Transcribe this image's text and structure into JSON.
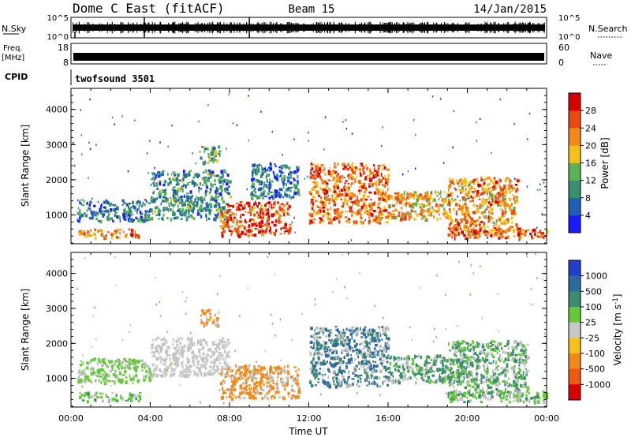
{
  "header": {
    "radar": "Dome C East (fitACF)",
    "beam": "Beam 15",
    "date": "14/Jan/2015"
  },
  "top_panels": {
    "nsky": {
      "label": "N.Sky",
      "tick_top": "10^5",
      "tick_bottom": "10^0",
      "right_label": "N.Search",
      "right_tick_top": "10^5",
      "right_tick_bottom": "10^0"
    },
    "freq": {
      "label_line1": "Freq.",
      "label_line2": "[MHz]",
      "tick_top": "18",
      "tick_bottom": "8",
      "right_label": "Nave",
      "right_tick_top": "60",
      "right_tick_bottom": "0"
    },
    "cpid": {
      "label": "CPID",
      "value": "twofsound 3501"
    }
  },
  "colors": {
    "power": [
      "#1a1aff",
      "#1f5fb5",
      "#3a8f70",
      "#5bb356",
      "#f2c21a",
      "#f08a1a",
      "#e84a12",
      "#d60000"
    ],
    "velocity": [
      "#2040c8",
      "#2f6a9c",
      "#3c8c6e",
      "#66c83a",
      "#c8c8c8",
      "#f2c21a",
      "#f08a1a",
      "#ee5a12",
      "#d60000"
    ],
    "grey": "#bebebe"
  },
  "chart_data": [
    {
      "type": "heatmap",
      "panel": "power",
      "xlabel": "",
      "ylabel": "Slant Range [km]",
      "x": [
        "00:00",
        "04:00",
        "08:00",
        "12:00",
        "16:00",
        "20:00",
        "00:00"
      ],
      "xlim_hours": [
        0,
        24
      ],
      "ylim": [
        180,
        4600
      ],
      "yticks": [
        "1000",
        "2000",
        "3000",
        "4000"
      ],
      "colorbar": {
        "label": "Power [dB]",
        "ticks": [
          "4",
          "8",
          "12",
          "16",
          "20",
          "24",
          "28"
        ]
      },
      "echo_regions": [
        {
          "t": [
            0.3,
            4.0
          ],
          "r": [
            850,
            1450
          ],
          "power_db": 8
        },
        {
          "t": [
            0.3,
            3.5
          ],
          "r": [
            380,
            620
          ],
          "power_db": 22
        },
        {
          "t": [
            4.0,
            8.0
          ],
          "r": [
            900,
            2300
          ],
          "power_db": 10
        },
        {
          "t": [
            6.5,
            7.5
          ],
          "r": [
            2500,
            3000
          ],
          "power_db": 12
        },
        {
          "t": [
            7.5,
            11.0
          ],
          "r": [
            450,
            1400
          ],
          "power_db": 26
        },
        {
          "t": [
            9.0,
            11.5
          ],
          "r": [
            1500,
            2500
          ],
          "power_db": 8
        },
        {
          "t": [
            12.0,
            16.0
          ],
          "r": [
            800,
            2500
          ],
          "power_db": 24
        },
        {
          "t": [
            16.0,
            19.0
          ],
          "r": [
            900,
            1700
          ],
          "power_db": 20
        },
        {
          "t": [
            19.0,
            22.5
          ],
          "r": [
            500,
            2100
          ],
          "power_db": 22
        },
        {
          "t": [
            19.0,
            24.0
          ],
          "r": [
            350,
            650
          ],
          "power_db": 26
        }
      ]
    },
    {
      "type": "heatmap",
      "panel": "velocity",
      "xlabel": "Time UT",
      "ylabel": "Slant Range [km]",
      "x": [
        "00:00",
        "04:00",
        "08:00",
        "12:00",
        "16:00",
        "20:00",
        "00:00"
      ],
      "xlim_hours": [
        0,
        24
      ],
      "ylim": [
        180,
        4600
      ],
      "yticks": [
        "1000",
        "2000",
        "3000",
        "4000"
      ],
      "colorbar": {
        "label": "Velocity [m s^-1]",
        "ticks": [
          "1000",
          "500",
          "100",
          "25",
          "-25",
          "-100",
          "-500",
          "-1000"
        ]
      },
      "echo_regions": [
        {
          "t": [
            0.3,
            4.0
          ],
          "r": [
            900,
            1600
          ],
          "velocity": 60
        },
        {
          "t": [
            0.3,
            3.5
          ],
          "r": [
            380,
            620
          ],
          "velocity": 80
        },
        {
          "t": [
            4.0,
            8.0
          ],
          "r": [
            1100,
            2200
          ],
          "velocity": 0
        },
        {
          "t": [
            6.5,
            7.5
          ],
          "r": [
            2500,
            3000
          ],
          "velocity": -200
        },
        {
          "t": [
            7.5,
            11.5
          ],
          "r": [
            450,
            1400
          ],
          "velocity": -300
        },
        {
          "t": [
            12.0,
            16.0
          ],
          "r": [
            800,
            2500
          ],
          "velocity": 600
        },
        {
          "t": [
            16.0,
            20.0
          ],
          "r": [
            900,
            1700
          ],
          "velocity": 150
        },
        {
          "t": [
            19.0,
            23.0
          ],
          "r": [
            500,
            2100
          ],
          "velocity": 120
        },
        {
          "t": [
            19.0,
            24.0
          ],
          "r": [
            350,
            650
          ],
          "velocity": 80
        }
      ]
    }
  ]
}
